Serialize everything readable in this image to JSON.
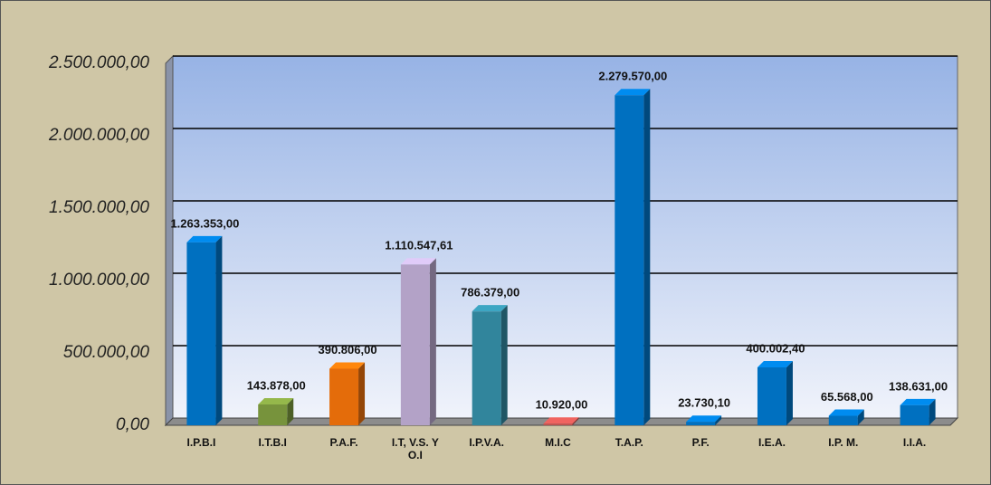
{
  "chart_data": {
    "type": "bar",
    "categories": [
      "I.P.B.I",
      "I.T.B.I",
      "P.A.F.",
      "I.T, V.S. Y O.I",
      "I.P.V.A.",
      "M.I.C",
      "T.A.P.",
      "P.F.",
      "I.E.A.",
      "I.P. M.",
      "I.I.A."
    ],
    "values": [
      1263353,
      143878,
      390806,
      1110547.61,
      786379,
      10920,
      2279570,
      23730.1,
      400002.4,
      65568,
      138631
    ],
    "value_labels": [
      "1.263.353,00",
      "143.878,00",
      "390.806,00",
      "1.110.547,61",
      "786.379,00",
      "10.920,00",
      "2.279.570,00",
      "23.730,10",
      "400.002,40",
      "65.568,00",
      "138.631,00"
    ],
    "colors": [
      "#0070c0",
      "#77933c",
      "#e46c0a",
      "#b3a2c7",
      "#31859c",
      "#c0504d",
      "#0070c0",
      "#0070c0",
      "#0070c0",
      "#0070c0",
      "#0070c0"
    ],
    "ylim": [
      0,
      2500000
    ],
    "yticks": [
      {
        "value": 0,
        "label": "0,00"
      },
      {
        "value": 500000,
        "label": "500.000,00"
      },
      {
        "value": 1000000,
        "label": "1.000.000,00"
      },
      {
        "value": 1500000,
        "label": "1.500.000,00"
      },
      {
        "value": 2000000,
        "label": "2.000.000,00"
      },
      {
        "value": 2500000,
        "label": "2.500.000,00"
      }
    ],
    "grid": true
  }
}
